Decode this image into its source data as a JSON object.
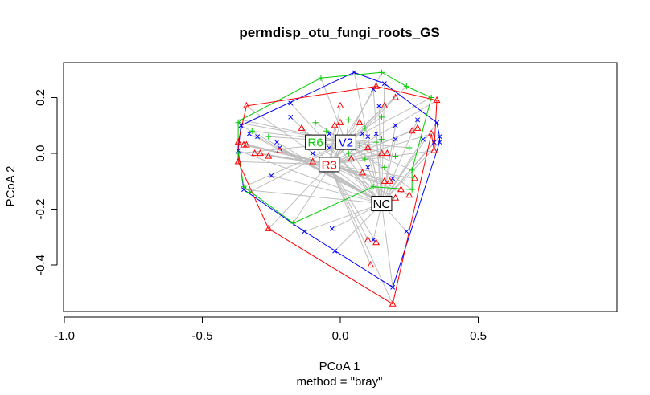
{
  "chart_data": {
    "type": "scatter",
    "title": "permdisp_otu_fungi_roots_GS",
    "xlabel": "PCoA 1",
    "ylabel": "PCoA 2",
    "subtitle": "method = \"bray\"",
    "xlim": [
      -1.0,
      1.0
    ],
    "ylim": [
      -0.56,
      0.32
    ],
    "xticks": [
      -1.0,
      -0.5,
      0.0,
      0.5
    ],
    "yticks": [
      -0.4,
      -0.2,
      0.0,
      0.2
    ],
    "xtick_labels": [
      "-1.0",
      "-0.5",
      "0.0",
      "0.5"
    ],
    "ytick_labels": [
      "-0.4",
      "-0.2",
      "0.0",
      "0.2"
    ],
    "grid": false,
    "legend": "none",
    "groups": [
      {
        "label": "NC",
        "marker": "x",
        "color": "#0000ff",
        "centroid": [
          0.15,
          -0.18
        ],
        "points": [
          [
            0.05,
            0.29
          ],
          [
            -0.36,
            0.1
          ],
          [
            0.16,
            0.25
          ],
          [
            0.35,
            0.11
          ],
          [
            0.36,
            0.06
          ],
          [
            0.36,
            0.04
          ],
          [
            -0.37,
            0.01
          ],
          [
            -0.35,
            -0.13
          ],
          [
            0.19,
            -0.48
          ],
          [
            -0.13,
            -0.28
          ],
          [
            -0.02,
            -0.35
          ],
          [
            -0.03,
            -0.27
          ],
          [
            0.24,
            -0.28
          ],
          [
            -0.18,
            0.18
          ],
          [
            -0.18,
            0.13
          ],
          [
            -0.33,
            0.07
          ],
          [
            -0.3,
            0.06
          ],
          [
            -0.22,
            0.02
          ],
          [
            -0.23,
            0.04
          ],
          [
            -0.06,
            -0.05
          ],
          [
            -0.05,
            -0.06
          ],
          [
            -0.04,
            0.07
          ],
          [
            0.12,
            0.23
          ],
          [
            0.14,
            0.17
          ],
          [
            0.2,
            0.1
          ],
          [
            0.28,
            0.12
          ],
          [
            0.1,
            -0.05
          ],
          [
            0.13,
            0.07
          ],
          [
            0.2,
            0.05
          ],
          [
            -0.25,
            -0.08
          ],
          [
            0.34,
            0.04
          ],
          [
            -0.1,
            0.0
          ],
          [
            0.12,
            -0.31
          ],
          [
            -0.04,
            0.02
          ],
          [
            0.19,
            -0.09
          ],
          [
            0.3,
            0.05
          ],
          [
            0.1,
            0.06
          ],
          [
            0.08,
            0.07
          ]
        ]
      },
      {
        "label": "V2",
        "marker": "+",
        "color": "#00cc00",
        "centroid": [
          0.02,
          0.04
        ],
        "points": [
          [
            -0.07,
            0.27
          ],
          [
            0.15,
            0.29
          ],
          [
            -0.37,
            0.0
          ],
          [
            -0.37,
            0.11
          ],
          [
            -0.36,
            0.12
          ],
          [
            0.24,
            0.24
          ],
          [
            0.33,
            0.2
          ],
          [
            -0.35,
            -0.12
          ],
          [
            -0.33,
            -0.14
          ],
          [
            -0.17,
            -0.25
          ],
          [
            0.12,
            -0.12
          ],
          [
            0.26,
            -0.13
          ],
          [
            0.26,
            -0.06
          ],
          [
            -0.32,
            0.08
          ],
          [
            -0.26,
            0.06
          ],
          [
            -0.09,
            0.11
          ],
          [
            0.03,
            0.12
          ],
          [
            0.09,
            0.09
          ],
          [
            0.15,
            0.13
          ],
          [
            0.2,
            -0.01
          ],
          [
            0.25,
            0.02
          ],
          [
            0.13,
            0.04
          ],
          [
            0.16,
            -0.05
          ],
          [
            0.07,
            0.03
          ],
          [
            -0.05,
            0.08
          ],
          [
            0.03,
            0.0
          ],
          [
            0.09,
            -0.02
          ],
          [
            0.15,
            0.05
          ]
        ]
      },
      {
        "label": "R3",
        "marker": "triangle",
        "color": "#ff0000",
        "centroid": [
          -0.04,
          -0.04
        ],
        "points": [
          [
            0.35,
            0.19
          ],
          [
            -0.34,
            0.17
          ],
          [
            0.13,
            0.24
          ],
          [
            0.0,
            0.17
          ],
          [
            -0.35,
            0.03
          ],
          [
            -0.37,
            0.04
          ],
          [
            -0.34,
            0.03
          ],
          [
            -0.31,
            0.0
          ],
          [
            -0.37,
            -0.03
          ],
          [
            -0.26,
            -0.27
          ],
          [
            0.19,
            -0.54
          ],
          [
            0.1,
            -0.31
          ],
          [
            0.13,
            -0.32
          ],
          [
            0.11,
            -0.4
          ],
          [
            0.2,
            -0.16
          ],
          [
            0.25,
            -0.15
          ],
          [
            0.27,
            -0.09
          ],
          [
            0.33,
            0.07
          ],
          [
            0.34,
            0.01
          ],
          [
            0.26,
            0.08
          ],
          [
            0.28,
            0.09
          ],
          [
            0.2,
            0.2
          ],
          [
            0.16,
            0.17
          ],
          [
            0.15,
            0.0
          ],
          [
            0.18,
            -0.1
          ],
          [
            0.08,
            -0.07
          ],
          [
            0.04,
            -0.02
          ],
          [
            -0.02,
            0.1
          ],
          [
            -0.14,
            0.09
          ],
          [
            -0.22,
            0.01
          ],
          [
            -0.26,
            -0.01
          ],
          [
            -0.29,
            0.0
          ],
          [
            0.0,
            0.11
          ],
          [
            0.07,
            0.11
          ],
          [
            0.17,
            0.0
          ],
          [
            0.22,
            -0.13
          ],
          [
            0.16,
            -0.1
          ],
          [
            -0.1,
            -0.03
          ],
          [
            0.1,
            0.02
          ],
          [
            -0.02,
            -0.04
          ]
        ]
      },
      {
        "label": "R6",
        "marker": "x",
        "color": "#0000ff",
        "centroid": [
          -0.09,
          0.04
        ],
        "points": []
      }
    ],
    "hulls": [
      {
        "color": "#0000ff",
        "points": [
          [
            0.05,
            0.29
          ],
          [
            0.16,
            0.25
          ],
          [
            0.35,
            0.11
          ],
          [
            0.36,
            0.06
          ],
          [
            0.36,
            0.04
          ],
          [
            0.19,
            -0.48
          ],
          [
            -0.13,
            -0.28
          ],
          [
            -0.35,
            -0.13
          ],
          [
            -0.37,
            0.01
          ],
          [
            -0.36,
            0.1
          ]
        ]
      },
      {
        "color": "#00cc00",
        "points": [
          [
            -0.07,
            0.27
          ],
          [
            0.15,
            0.29
          ],
          [
            0.24,
            0.24
          ],
          [
            0.33,
            0.2
          ],
          [
            0.26,
            -0.06
          ],
          [
            0.26,
            -0.13
          ],
          [
            0.12,
            -0.12
          ],
          [
            -0.17,
            -0.25
          ],
          [
            -0.35,
            -0.12
          ],
          [
            -0.37,
            0.0
          ],
          [
            -0.37,
            0.11
          ],
          [
            -0.36,
            0.12
          ]
        ]
      },
      {
        "color": "#ff0000",
        "points": [
          [
            0.13,
            0.24
          ],
          [
            0.35,
            0.19
          ],
          [
            0.34,
            0.01
          ],
          [
            0.33,
            0.07
          ],
          [
            0.19,
            -0.54
          ],
          [
            -0.26,
            -0.27
          ],
          [
            -0.37,
            -0.03
          ],
          [
            -0.37,
            0.04
          ],
          [
            -0.34,
            0.17
          ]
        ]
      }
    ],
    "centroid_labels": [
      {
        "text": "R6",
        "x": -0.09,
        "y": 0.04,
        "color": "#00cc00"
      },
      {
        "text": "V2",
        "x": 0.02,
        "y": 0.04,
        "color": "#0000ff"
      },
      {
        "text": "R3",
        "x": -0.04,
        "y": -0.04,
        "color": "#ff0000"
      },
      {
        "text": "NC",
        "x": 0.15,
        "y": -0.18,
        "color": "#000000"
      }
    ],
    "spoke_color": "#bebebe"
  }
}
